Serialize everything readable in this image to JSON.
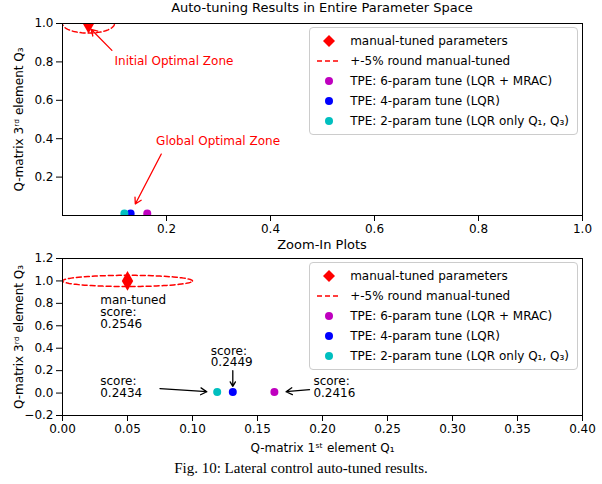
{
  "chart_data": [
    {
      "type": "scatter",
      "title": "Auto-tuning Results in Entire Parameter Space",
      "y_label": "Q-matrix 3ʳᵈ element Q₃",
      "xlim": [
        0,
        1.0
      ],
      "xticks": [
        0.2,
        0.4,
        0.6,
        0.8,
        {
          "value": 1.0,
          "label": "1.0"
        }
      ],
      "ylim": [
        0,
        1.0
      ],
      "yticks": [
        0.2,
        0.4,
        0.6,
        0.8,
        {
          "value": 1.0,
          "label": "1.0"
        }
      ],
      "legend": "upper right",
      "series": [
        {
          "name": "manual-tuned parameters",
          "color": "#ff0000",
          "marker": "diamond",
          "x": [
            0.05
          ],
          "y": [
            1.0
          ]
        },
        {
          "name": "+-5% round manual-tuned",
          "color": "#ff0000",
          "type": "ellipse",
          "line_style": "dashed",
          "center": [
            0.05,
            1.0
          ],
          "radius": [
            0.05,
            0.05
          ]
        },
        {
          "name": "TPE: 6-param tune (LQR + MRAC)",
          "color": "#bf00bf",
          "marker": "circle",
          "x": [
            0.163
          ],
          "y": [
            0.01
          ]
        },
        {
          "name": "TPE: 4-param tune (LQR)",
          "color": "#0000ff",
          "marker": "circle",
          "x": [
            0.131
          ],
          "y": [
            0.01
          ]
        },
        {
          "name": "TPE: 2-param tune (LQR only Q₁, Q₃)",
          "color": "#00bfbf",
          "marker": "circle",
          "x": [
            0.119
          ],
          "y": [
            0.01
          ]
        }
      ],
      "annotations": [
        {
          "text": "Initial Optimal Zone",
          "color": "#ff0000",
          "x": 0.1,
          "y": 0.83,
          "arrow": [
            [
              0.095,
              0.86
            ],
            [
              0.055,
              0.97
            ]
          ]
        },
        {
          "text": "Global Optimal Zone",
          "color": "#ff0000",
          "x": 0.18,
          "y": 0.41,
          "arrow": [
            [
              0.19,
              0.32
            ],
            [
              0.14,
              0.06
            ]
          ]
        }
      ]
    },
    {
      "type": "scatter",
      "title": "Zoom-In Plots",
      "x_label": "Q-matrix 1ˢᵗ element Q₁",
      "y_label": "Q-matrix 3ʳᵈ element Q₃",
      "xlim": [
        0,
        0.4
      ],
      "xticks": [
        {
          "value": 0,
          "label": "0.00"
        },
        0.05,
        {
          "value": 0.1,
          "label": "0.10"
        },
        0.15,
        {
          "value": 0.2,
          "label": "0.20"
        },
        0.25,
        {
          "value": 0.3,
          "label": "0.30"
        },
        0.35,
        {
          "value": 0.4,
          "label": "0.40"
        }
      ],
      "ylim": [
        -0.2,
        1.2
      ],
      "yticks": [
        {
          "value": -0.2,
          "label": "−0.2"
        },
        {
          "value": 0,
          "label": "0.0"
        },
        0.2,
        0.4,
        0.6,
        0.8,
        {
          "value": 1.0,
          "label": "1.0"
        },
        1.2
      ],
      "legend": "upper right",
      "series": [
        {
          "name": "manual-tuned parameters",
          "color": "#ff0000",
          "marker": "diamond",
          "x": [
            0.05
          ],
          "y": [
            1.0
          ]
        },
        {
          "name": "+-5% round manual-tuned",
          "color": "#ff0000",
          "type": "ellipse",
          "line_style": "dashed",
          "center": [
            0.05,
            1.0
          ],
          "radius": [
            0.05,
            0.05
          ]
        },
        {
          "name": "TPE: 6-param tune (LQR + MRAC)",
          "color": "#bf00bf",
          "marker": "circle",
          "x": [
            0.163
          ],
          "y": [
            0.01
          ]
        },
        {
          "name": "TPE: 4-param tune (LQR)",
          "color": "#0000ff",
          "marker": "circle",
          "x": [
            0.131
          ],
          "y": [
            0.01
          ]
        },
        {
          "name": "TPE: 2-param tune (LQR only Q₁, Q₃)",
          "color": "#00bfbf",
          "marker": "circle",
          "x": [
            0.119
          ],
          "y": [
            0.01
          ]
        }
      ],
      "annotations": [
        {
          "text": "man-tuned\nscore:\n0.2546",
          "color": "#000000",
          "x": 0.029,
          "y": 0.87
        },
        {
          "text": "score:\n0.2449",
          "color": "#000000",
          "x": 0.114,
          "y": 0.42,
          "arrow": [
            [
              0.131,
              0.2
            ],
            [
              0.131,
              0.06
            ]
          ]
        },
        {
          "text": "score:\n0.2434",
          "color": "#000000",
          "x": 0.029,
          "y": 0.146,
          "arrow": [
            [
              0.075,
              0.04
            ],
            [
              0.111,
              0.012
            ]
          ]
        },
        {
          "text": "score:\n0.2416",
          "color": "#000000",
          "x": 0.193,
          "y": 0.146,
          "arrow": [
            [
              0.19,
              0.03
            ],
            [
              0.172,
              0.012
            ]
          ]
        }
      ]
    }
  ],
  "caption": "Fig. 10: Lateral control auto-tuned results."
}
